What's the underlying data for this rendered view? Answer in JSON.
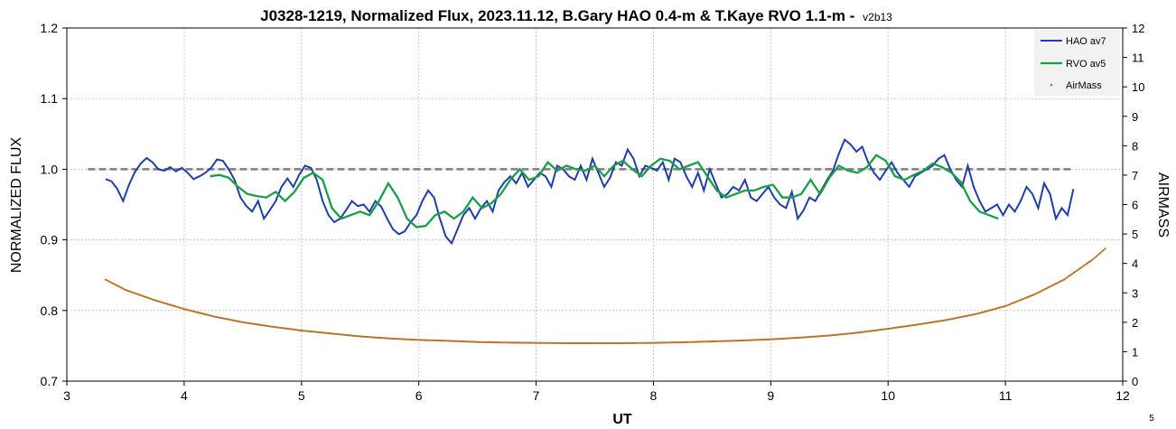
{
  "chart_data": {
    "type": "line",
    "title": "J0328-1219, Normalized Flux, 2023.11.12, B.Gary HAO 0.4-m & T.Kaye RVO 1.1-m - ",
    "title_version": "v2b13",
    "xlabel": "UT",
    "ylabel": "NORMALIZED FLUX",
    "y2label": "AIRMASS",
    "xlim": [
      3,
      12
    ],
    "ylim": [
      0.7,
      1.2
    ],
    "y2lim": [
      0,
      12
    ],
    "x_ticks": [
      "3",
      "4",
      "5",
      "6",
      "7",
      "8",
      "9",
      "10",
      "11",
      "12"
    ],
    "y_ticks": [
      "0.7",
      "0.8",
      "0.9",
      "1.0",
      "1.1",
      "1.2"
    ],
    "y2_ticks": [
      "0",
      "1",
      "2",
      "3",
      "4",
      "5",
      "6",
      "7",
      "8",
      "9",
      "10",
      "11",
      "12"
    ],
    "grid": true,
    "legend_position": "top-right",
    "corner_label": "5",
    "reference_line": {
      "y": 1.0,
      "x": [
        3.18,
        11.58
      ],
      "style": "dashed",
      "color": "#7f7f7f"
    },
    "colors": {
      "hao": "#1f3fa8",
      "rvo": "#1a9e47",
      "airmass": "#b8732a",
      "reference": "#7f7f7f"
    },
    "series": [
      {
        "name": "HAO av7",
        "color": "#1f3fa8",
        "axis": "left",
        "x": [
          3.33,
          3.38,
          3.43,
          3.48,
          3.53,
          3.58,
          3.63,
          3.68,
          3.73,
          3.78,
          3.83,
          3.88,
          3.93,
          3.98,
          4.03,
          4.08,
          4.13,
          4.18,
          4.23,
          4.28,
          4.33,
          4.38,
          4.43,
          4.48,
          4.53,
          4.58,
          4.63,
          4.68,
          4.73,
          4.78,
          4.83,
          4.88,
          4.93,
          4.98,
          5.03,
          5.08,
          5.13,
          5.18,
          5.23,
          5.28,
          5.33,
          5.38,
          5.43,
          5.48,
          5.53,
          5.58,
          5.63,
          5.68,
          5.73,
          5.78,
          5.83,
          5.88,
          5.93,
          5.98,
          6.03,
          6.08,
          6.13,
          6.18,
          6.23,
          6.28,
          6.33,
          6.38,
          6.43,
          6.48,
          6.53,
          6.58,
          6.63,
          6.68,
          6.73,
          6.78,
          6.83,
          6.88,
          6.93,
          6.98,
          7.03,
          7.08,
          7.13,
          7.18,
          7.23,
          7.28,
          7.33,
          7.38,
          7.43,
          7.48,
          7.53,
          7.58,
          7.63,
          7.68,
          7.73,
          7.78,
          7.83,
          7.88,
          7.93,
          7.98,
          8.03,
          8.08,
          8.13,
          8.18,
          8.23,
          8.28,
          8.33,
          8.38,
          8.43,
          8.48,
          8.53,
          8.58,
          8.63,
          8.68,
          8.73,
          8.78,
          8.83,
          8.88,
          8.93,
          8.98,
          9.03,
          9.08,
          9.13,
          9.18,
          9.23,
          9.28,
          9.33,
          9.38,
          9.43,
          9.48,
          9.53,
          9.58,
          9.63,
          9.68,
          9.73,
          9.78,
          9.83,
          9.88,
          9.93,
          9.98,
          10.03,
          10.08,
          10.13,
          10.18,
          10.23,
          10.28,
          10.33,
          10.38,
          10.43,
          10.48,
          10.53,
          10.58,
          10.63,
          10.68,
          10.73,
          10.78,
          10.83,
          10.88,
          10.93,
          10.98,
          11.03,
          11.08,
          11.13,
          11.18,
          11.23,
          11.28,
          11.33,
          11.38,
          11.43,
          11.48,
          11.53,
          11.58
        ],
        "values": [
          0.986,
          0.983,
          0.972,
          0.955,
          0.978,
          0.996,
          1.008,
          1.016,
          1.01,
          1.0,
          0.998,
          1.003,
          0.997,
          1.002,
          0.995,
          0.986,
          0.99,
          0.995,
          1.002,
          1.014,
          1.012,
          1.0,
          0.985,
          0.96,
          0.948,
          0.94,
          0.955,
          0.93,
          0.942,
          0.955,
          0.975,
          0.987,
          0.975,
          0.992,
          1.005,
          1.002,
          0.985,
          0.955,
          0.935,
          0.925,
          0.93,
          0.942,
          0.955,
          0.948,
          0.95,
          0.94,
          0.955,
          0.947,
          0.93,
          0.915,
          0.908,
          0.912,
          0.925,
          0.935,
          0.955,
          0.97,
          0.96,
          0.93,
          0.905,
          0.895,
          0.915,
          0.935,
          0.945,
          0.93,
          0.945,
          0.955,
          0.94,
          0.97,
          0.982,
          0.99,
          0.98,
          0.995,
          0.975,
          0.985,
          0.995,
          0.99,
          0.975,
          1.005,
          1.0,
          0.99,
          0.985,
          1.005,
          0.985,
          1.015,
          0.995,
          0.975,
          0.988,
          1.01,
          1.005,
          1.028,
          1.015,
          0.99,
          1.005,
          1.002,
          0.998,
          1.01,
          0.985,
          1.015,
          1.01,
          0.99,
          0.975,
          0.995,
          0.97,
          1.0,
          0.98,
          0.96,
          0.965,
          0.975,
          0.97,
          0.985,
          0.96,
          0.955,
          0.965,
          0.975,
          0.96,
          0.95,
          0.945,
          0.968,
          0.93,
          0.942,
          0.96,
          0.955,
          0.97,
          0.985,
          0.998,
          1.022,
          1.042,
          1.035,
          1.025,
          1.032,
          1.01,
          0.995,
          0.985,
          0.998,
          1.01,
          0.995,
          0.985,
          0.975,
          0.99,
          0.995,
          1.0,
          1.005,
          1.015,
          1.02,
          1.0,
          0.985,
          0.975,
          1.005,
          0.975,
          0.955,
          0.94,
          0.945,
          0.95,
          0.935,
          0.95,
          0.94,
          0.955,
          0.975,
          0.965,
          0.945,
          0.98,
          0.965,
          0.93,
          0.945,
          0.935,
          0.972
        ]
      },
      {
        "name": "RVO av5",
        "color": "#1a9e47",
        "axis": "left",
        "x": [
          4.22,
          4.3,
          4.38,
          4.46,
          4.54,
          4.62,
          4.7,
          4.78,
          4.86,
          4.94,
          5.02,
          5.1,
          5.18,
          5.26,
          5.34,
          5.42,
          5.5,
          5.58,
          5.66,
          5.74,
          5.82,
          5.9,
          5.98,
          6.06,
          6.14,
          6.22,
          6.3,
          6.38,
          6.46,
          6.54,
          6.62,
          6.7,
          6.78,
          6.86,
          6.94,
          7.02,
          7.1,
          7.18,
          7.26,
          7.34,
          7.42,
          7.5,
          7.58,
          7.66,
          7.74,
          7.82,
          7.9,
          7.98,
          8.06,
          8.14,
          8.22,
          8.3,
          8.38,
          8.46,
          8.54,
          8.62,
          8.7,
          8.78,
          8.86,
          8.94,
          9.02,
          9.1,
          9.18,
          9.26,
          9.34,
          9.42,
          9.5,
          9.58,
          9.66,
          9.74,
          9.82,
          9.9,
          9.98,
          10.06,
          10.14,
          10.22,
          10.3,
          10.38,
          10.46,
          10.54,
          10.62,
          10.7,
          10.78,
          10.86,
          10.94
        ],
        "values": [
          0.99,
          0.992,
          0.988,
          0.975,
          0.965,
          0.962,
          0.96,
          0.968,
          0.955,
          0.968,
          0.988,
          0.995,
          0.985,
          0.945,
          0.93,
          0.935,
          0.94,
          0.935,
          0.955,
          0.98,
          0.96,
          0.93,
          0.918,
          0.92,
          0.935,
          0.94,
          0.93,
          0.94,
          0.96,
          0.945,
          0.952,
          0.965,
          0.985,
          1.0,
          0.985,
          0.99,
          1.01,
          0.998,
          1.005,
          1.0,
          0.998,
          1.005,
          0.99,
          1.005,
          1.012,
          1.0,
          0.99,
          1.005,
          1.015,
          1.012,
          1.0,
          1.005,
          1.01,
          0.99,
          0.97,
          0.96,
          0.965,
          0.97,
          0.97,
          0.975,
          0.978,
          0.96,
          0.96,
          0.965,
          0.985,
          0.965,
          0.988,
          1.005,
          0.998,
          0.995,
          1.003,
          1.02,
          1.012,
          0.99,
          0.985,
          0.992,
          0.998,
          1.008,
          1.003,
          0.995,
          0.982,
          0.955,
          0.94,
          0.935,
          0.93
        ]
      },
      {
        "name": "AirMass",
        "color": "#b8732a",
        "axis": "right",
        "x": [
          3.33,
          3.5,
          3.75,
          4.0,
          4.25,
          4.5,
          4.75,
          5.0,
          5.25,
          5.5,
          5.75,
          6.0,
          6.25,
          6.5,
          6.75,
          7.0,
          7.25,
          7.5,
          7.75,
          8.0,
          8.25,
          8.5,
          8.75,
          9.0,
          9.25,
          9.5,
          9.75,
          10.0,
          10.25,
          10.5,
          10.75,
          11.0,
          11.25,
          11.5,
          11.75,
          11.85
        ],
        "values": [
          3.45,
          3.1,
          2.75,
          2.45,
          2.2,
          2.0,
          1.85,
          1.72,
          1.62,
          1.52,
          1.45,
          1.4,
          1.37,
          1.33,
          1.31,
          1.3,
          1.29,
          1.29,
          1.29,
          1.3,
          1.32,
          1.35,
          1.38,
          1.42,
          1.48,
          1.55,
          1.65,
          1.78,
          1.92,
          2.08,
          2.28,
          2.55,
          2.95,
          3.45,
          4.15,
          4.5
        ]
      }
    ]
  }
}
